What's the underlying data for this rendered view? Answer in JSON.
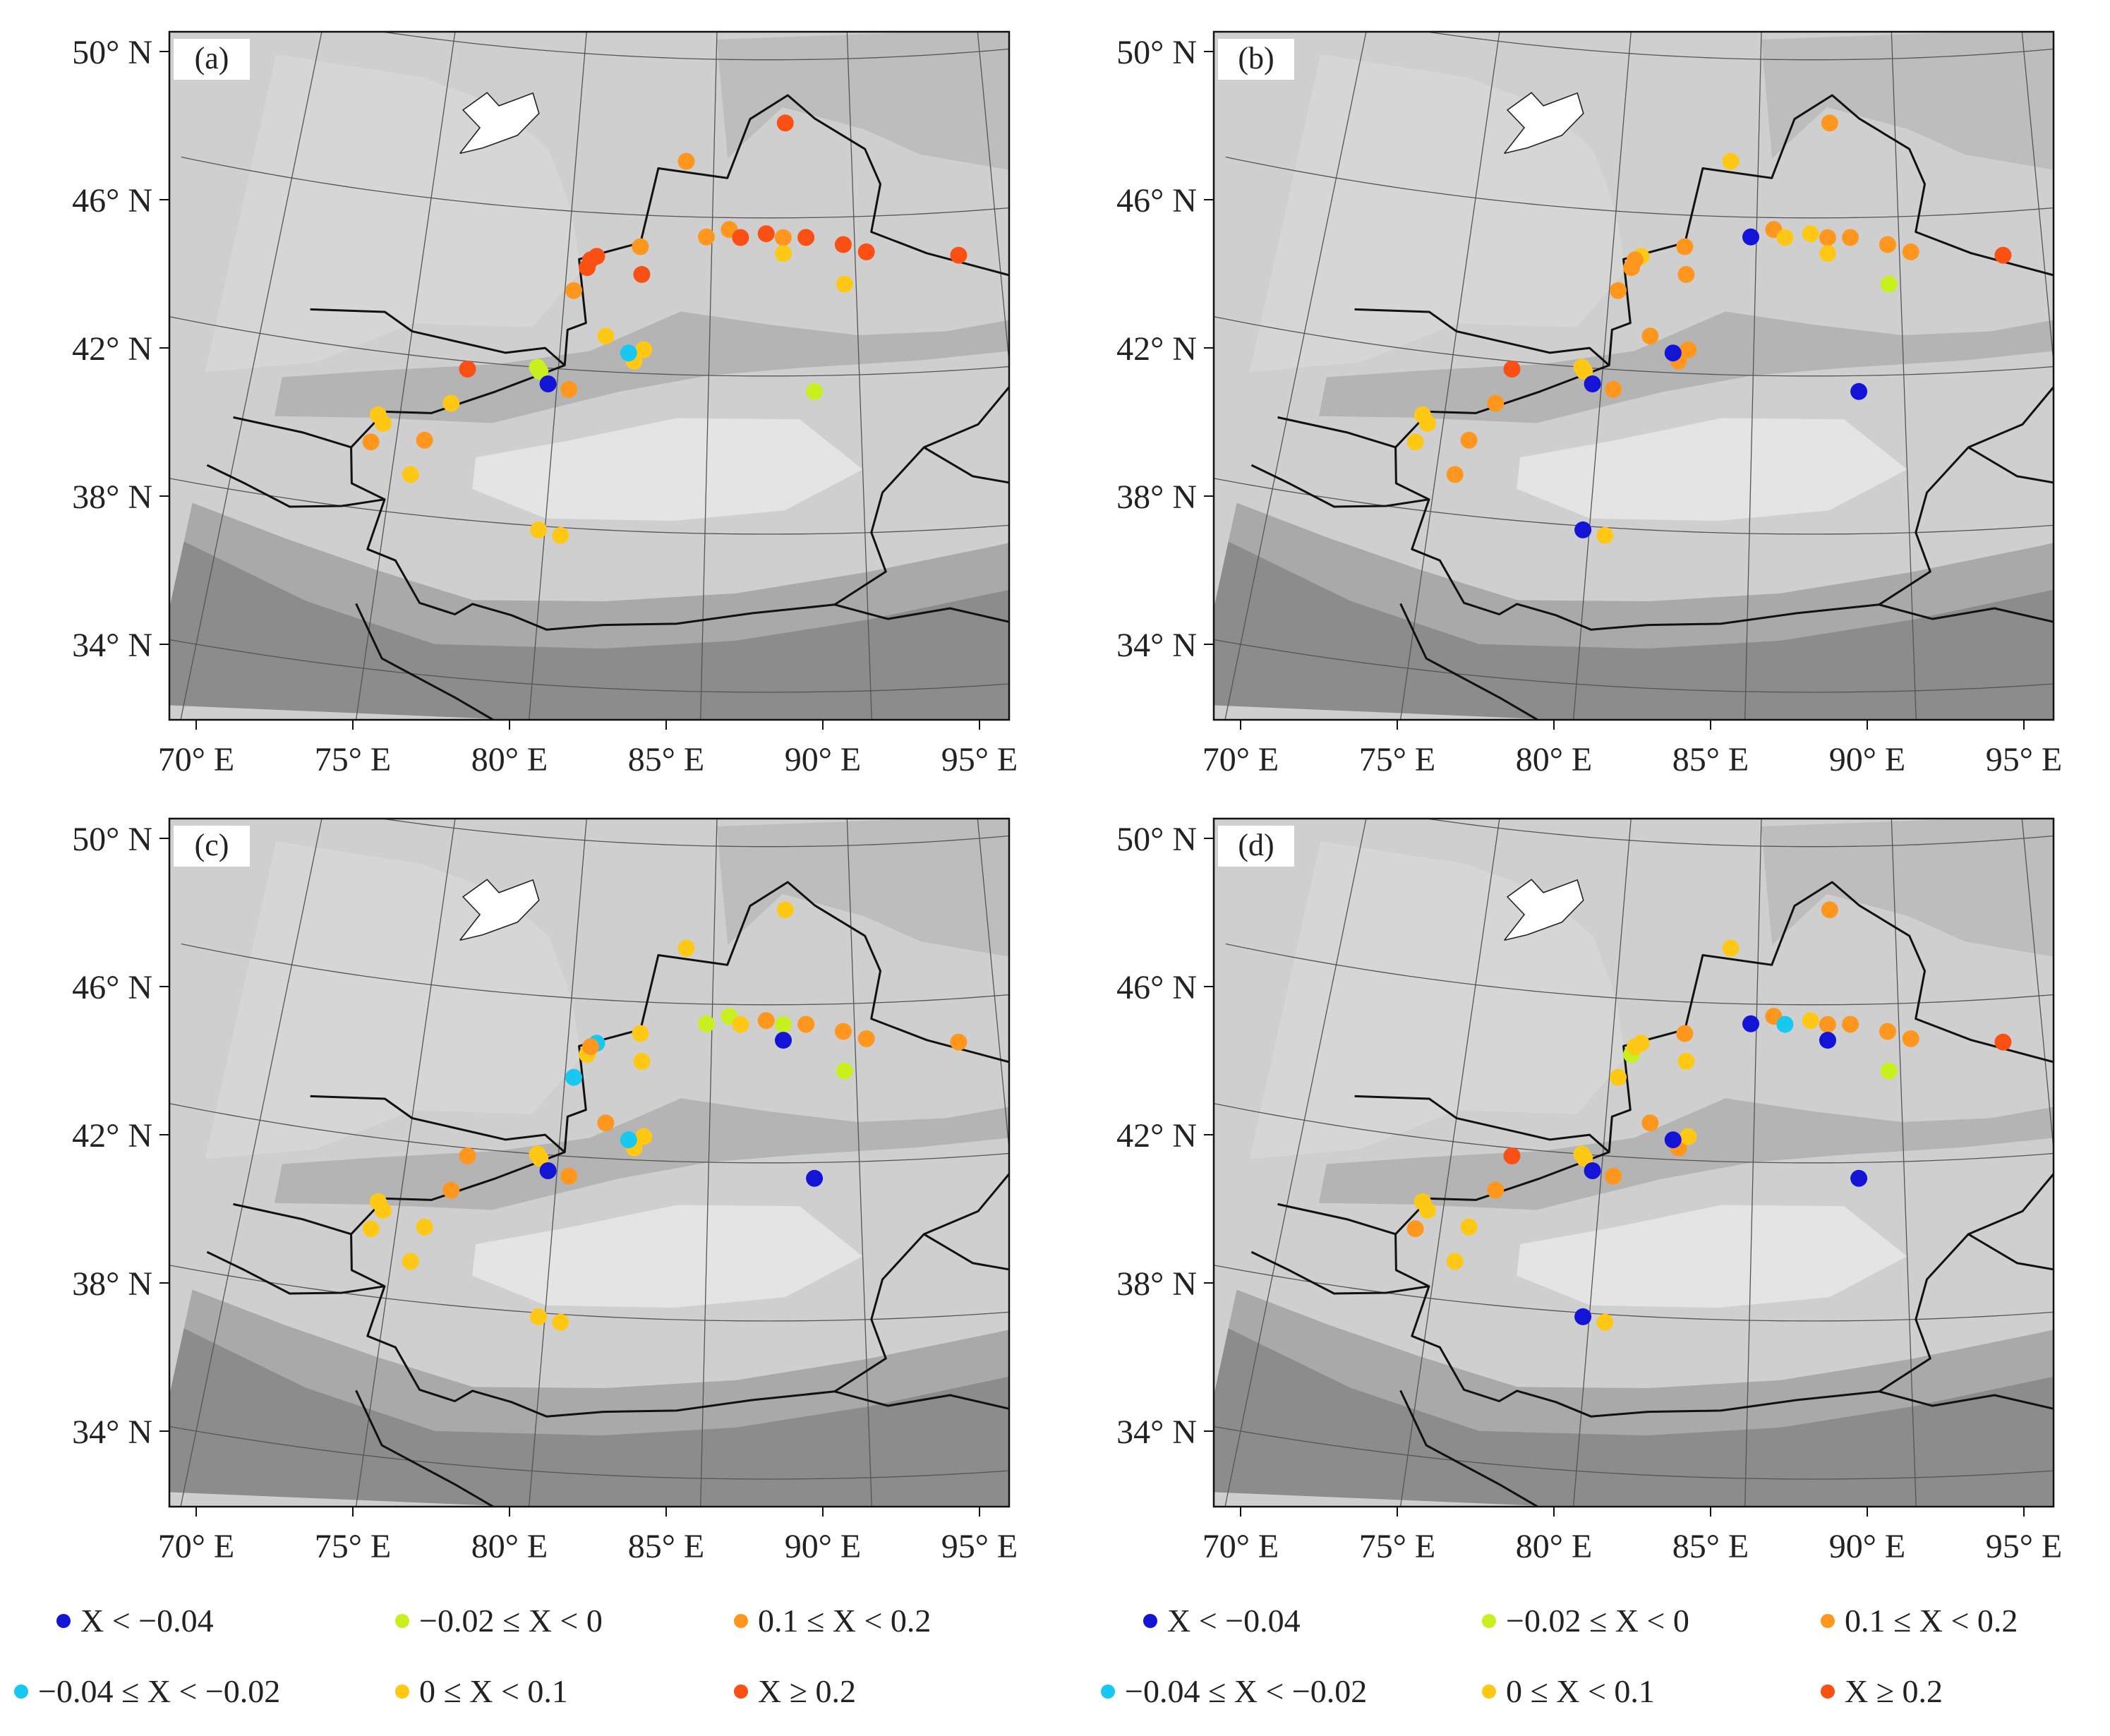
{
  "panels": [
    {
      "label": "(a)",
      "stations": [
        [
          84.0,
          47.4,
          "o"
        ],
        [
          87.6,
          48.4,
          "r"
        ],
        [
          82.5,
          45.2,
          "o"
        ],
        [
          81.0,
          44.9,
          "r"
        ],
        [
          80.7,
          44.6,
          "r"
        ],
        [
          80.8,
          44.8,
          "r"
        ],
        [
          82.6,
          44.5,
          "r"
        ],
        [
          84.8,
          45.5,
          "o"
        ],
        [
          85.6,
          45.7,
          "o"
        ],
        [
          86.0,
          45.5,
          "r"
        ],
        [
          86.9,
          45.6,
          "r"
        ],
        [
          87.5,
          45.5,
          "o"
        ],
        [
          88.3,
          45.5,
          "r"
        ],
        [
          89.6,
          45.3,
          "r"
        ],
        [
          90.4,
          45.1,
          "r"
        ],
        [
          93.6,
          44.9,
          "r"
        ],
        [
          87.5,
          45.1,
          "y"
        ],
        [
          80.3,
          44.0,
          "o"
        ],
        [
          89.6,
          44.3,
          "y"
        ],
        [
          81.5,
          42.9,
          "y"
        ],
        [
          82.5,
          42.3,
          "y"
        ],
        [
          82.8,
          42.6,
          "y"
        ],
        [
          82.3,
          42.5,
          "c"
        ],
        [
          79.3,
          42.0,
          "g"
        ],
        [
          79.4,
          41.9,
          "g"
        ],
        [
          79.7,
          41.6,
          "b"
        ],
        [
          80.4,
          41.5,
          "o"
        ],
        [
          77.0,
          41.8,
          "r"
        ],
        [
          88.5,
          41.6,
          "g"
        ],
        [
          76.6,
          40.9,
          "y"
        ],
        [
          74.3,
          40.4,
          "y"
        ],
        [
          74.5,
          40.2,
          "y"
        ],
        [
          75.9,
          39.9,
          "o"
        ],
        [
          74.2,
          39.7,
          "o"
        ],
        [
          75.6,
          39.0,
          "y"
        ],
        [
          79.8,
          37.9,
          "y"
        ],
        [
          80.5,
          37.8,
          "y"
        ]
      ]
    },
    {
      "label": "(b)",
      "stations": [
        [
          84.0,
          47.4,
          "y"
        ],
        [
          87.6,
          48.4,
          "o"
        ],
        [
          82.5,
          45.2,
          "o"
        ],
        [
          81.0,
          44.9,
          "y"
        ],
        [
          80.7,
          44.6,
          "o"
        ],
        [
          80.8,
          44.8,
          "o"
        ],
        [
          82.6,
          44.5,
          "o"
        ],
        [
          84.8,
          45.5,
          "b"
        ],
        [
          85.6,
          45.7,
          "o"
        ],
        [
          86.0,
          45.5,
          "y"
        ],
        [
          86.9,
          45.6,
          "y"
        ],
        [
          87.5,
          45.5,
          "o"
        ],
        [
          88.3,
          45.5,
          "o"
        ],
        [
          89.6,
          45.3,
          "o"
        ],
        [
          90.4,
          45.1,
          "o"
        ],
        [
          93.6,
          44.9,
          "r"
        ],
        [
          87.5,
          45.1,
          "y"
        ],
        [
          80.3,
          44.0,
          "o"
        ],
        [
          89.6,
          44.3,
          "g"
        ],
        [
          81.5,
          42.9,
          "o"
        ],
        [
          82.5,
          42.3,
          "o"
        ],
        [
          82.8,
          42.6,
          "o"
        ],
        [
          82.3,
          42.5,
          "b"
        ],
        [
          79.3,
          42.0,
          "y"
        ],
        [
          79.4,
          41.9,
          "y"
        ],
        [
          79.7,
          41.6,
          "b"
        ],
        [
          80.4,
          41.5,
          "o"
        ],
        [
          77.0,
          41.8,
          "r"
        ],
        [
          88.5,
          41.6,
          "b"
        ],
        [
          76.6,
          40.9,
          "o"
        ],
        [
          74.3,
          40.4,
          "y"
        ],
        [
          74.5,
          40.2,
          "y"
        ],
        [
          75.9,
          39.9,
          "o"
        ],
        [
          74.2,
          39.7,
          "y"
        ],
        [
          75.6,
          39.0,
          "o"
        ],
        [
          79.8,
          37.9,
          "b"
        ],
        [
          80.5,
          37.8,
          "y"
        ]
      ]
    },
    {
      "label": "(c)",
      "stations": [
        [
          84.0,
          47.4,
          "y"
        ],
        [
          87.6,
          48.4,
          "y"
        ],
        [
          82.5,
          45.2,
          "y"
        ],
        [
          81.0,
          44.9,
          "c"
        ],
        [
          80.7,
          44.6,
          "y"
        ],
        [
          80.8,
          44.8,
          "o"
        ],
        [
          82.6,
          44.5,
          "y"
        ],
        [
          84.8,
          45.5,
          "g"
        ],
        [
          85.6,
          45.7,
          "g"
        ],
        [
          86.0,
          45.5,
          "y"
        ],
        [
          86.9,
          45.6,
          "o"
        ],
        [
          87.5,
          45.5,
          "g"
        ],
        [
          88.3,
          45.5,
          "o"
        ],
        [
          89.6,
          45.3,
          "o"
        ],
        [
          90.4,
          45.1,
          "o"
        ],
        [
          93.6,
          44.9,
          "o"
        ],
        [
          87.5,
          45.1,
          "b"
        ],
        [
          80.3,
          44.0,
          "c"
        ],
        [
          89.6,
          44.3,
          "g"
        ],
        [
          81.5,
          42.9,
          "o"
        ],
        [
          82.5,
          42.3,
          "y"
        ],
        [
          82.8,
          42.6,
          "y"
        ],
        [
          82.3,
          42.5,
          "c"
        ],
        [
          79.3,
          42.0,
          "y"
        ],
        [
          79.4,
          41.9,
          "y"
        ],
        [
          79.7,
          41.6,
          "b"
        ],
        [
          80.4,
          41.5,
          "o"
        ],
        [
          77.0,
          41.8,
          "o"
        ],
        [
          88.5,
          41.6,
          "b"
        ],
        [
          76.6,
          40.9,
          "o"
        ],
        [
          74.3,
          40.4,
          "y"
        ],
        [
          74.5,
          40.2,
          "y"
        ],
        [
          75.9,
          39.9,
          "y"
        ],
        [
          74.2,
          39.7,
          "y"
        ],
        [
          75.6,
          39.0,
          "y"
        ],
        [
          79.8,
          37.9,
          "y"
        ],
        [
          80.5,
          37.8,
          "y"
        ]
      ]
    },
    {
      "label": "(d)",
      "stations": [
        [
          84.0,
          47.4,
          "y"
        ],
        [
          87.6,
          48.4,
          "o"
        ],
        [
          82.5,
          45.2,
          "o"
        ],
        [
          81.0,
          44.9,
          "y"
        ],
        [
          80.7,
          44.6,
          "g"
        ],
        [
          80.8,
          44.8,
          "y"
        ],
        [
          82.6,
          44.5,
          "y"
        ],
        [
          84.8,
          45.5,
          "b"
        ],
        [
          85.6,
          45.7,
          "o"
        ],
        [
          86.0,
          45.5,
          "c"
        ],
        [
          86.9,
          45.6,
          "y"
        ],
        [
          87.5,
          45.5,
          "o"
        ],
        [
          88.3,
          45.5,
          "o"
        ],
        [
          89.6,
          45.3,
          "o"
        ],
        [
          90.4,
          45.1,
          "o"
        ],
        [
          93.6,
          44.9,
          "r"
        ],
        [
          87.5,
          45.1,
          "b"
        ],
        [
          80.3,
          44.0,
          "y"
        ],
        [
          89.6,
          44.3,
          "g"
        ],
        [
          81.5,
          42.9,
          "o"
        ],
        [
          82.5,
          42.3,
          "o"
        ],
        [
          82.8,
          42.6,
          "y"
        ],
        [
          82.3,
          42.5,
          "b"
        ],
        [
          79.3,
          42.0,
          "y"
        ],
        [
          79.4,
          41.9,
          "y"
        ],
        [
          79.7,
          41.6,
          "b"
        ],
        [
          80.4,
          41.5,
          "o"
        ],
        [
          77.0,
          41.8,
          "r"
        ],
        [
          88.5,
          41.6,
          "b"
        ],
        [
          76.6,
          40.9,
          "o"
        ],
        [
          74.3,
          40.4,
          "y"
        ],
        [
          74.5,
          40.2,
          "y"
        ],
        [
          75.9,
          39.9,
          "y"
        ],
        [
          74.2,
          39.7,
          "o"
        ],
        [
          75.6,
          39.0,
          "y"
        ],
        [
          79.8,
          37.9,
          "b"
        ],
        [
          80.5,
          37.8,
          "y"
        ]
      ]
    }
  ],
  "lat_labels": [
    "50° N",
    "46° N",
    "42° N",
    "38° N",
    "34° N"
  ],
  "lon_labels": [
    "70° E",
    "75° E",
    "80° E",
    "85° E",
    "90° E",
    "95° E"
  ],
  "classes": {
    "b": {
      "label": "X < −0.04",
      "color": "#1414d6"
    },
    "c": {
      "label": "−0.04 ≤ X < −0.02",
      "color": "#19c8f0"
    },
    "g": {
      "label": "−0.02 ≤ X < 0",
      "color": "#c8f01e"
    },
    "y": {
      "label": "0 ≤ X < 0.1",
      "color": "#ffc814"
    },
    "o": {
      "label": "0.1 ≤ X < 0.2",
      "color": "#ff961e"
    },
    "r": {
      "label": "X ≥ 0.2",
      "color": "#fa5014"
    }
  },
  "legend_order": [
    "b",
    "g",
    "o",
    "c",
    "y",
    "r"
  ]
}
